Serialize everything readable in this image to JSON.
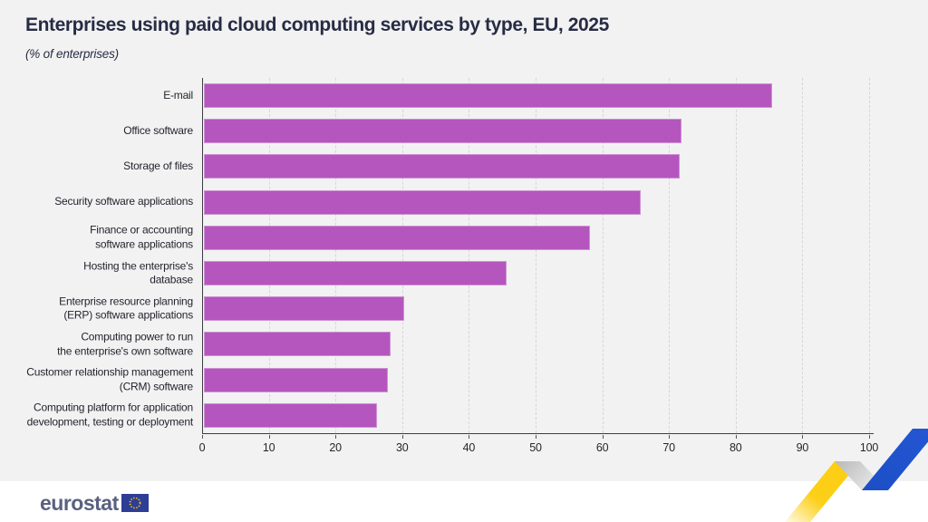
{
  "header": {
    "title": "Enterprises using paid cloud computing services by type, EU, 2025",
    "subtitle": "(% of enterprises)"
  },
  "chart_data": {
    "type": "bar",
    "orientation": "horizontal",
    "title": "Enterprises using paid cloud computing services by type, EU, 2025",
    "subtitle": "(% of enterprises)",
    "categories": [
      "E-mail",
      "Office software",
      "Storage of files",
      "Security software applications",
      "Finance or accounting\nsoftware applications",
      "Hosting the enterprise's\ndatabase",
      "Enterprise resource planning\n(ERP) software applications",
      "Computing power to run\nthe enterprise's own software",
      "Customer relationship management\n(CRM) software",
      "Computing platform for application\ndevelopment, testing or deployment"
    ],
    "values": [
      85.5,
      71.9,
      71.6,
      65.7,
      58.2,
      45.7,
      30.3,
      28.2,
      27.9,
      26.2
    ],
    "xlabel": "",
    "ylabel": "",
    "xlim": [
      0,
      100
    ],
    "xticks": [
      0,
      10,
      20,
      30,
      40,
      50,
      60,
      70,
      80,
      90,
      100
    ],
    "grid": "vertical-dashed",
    "legend": "none",
    "bar_color": "#b456bd"
  },
  "footer": {
    "brand": "eurostat",
    "flag_icon": "eu-flag-icon",
    "ribbon_icon": "zigzag-ribbon-icon"
  },
  "colors": {
    "background_panel": "#f2f2f2",
    "bar": "#b456bd",
    "title_text": "#272c45",
    "axis": "#3d3d42",
    "gridline": "#d6d6d6",
    "brand_text": "#5a6080",
    "flag_blue": "#2e3d95",
    "star_yellow": "#ffcc00",
    "ribbon_blue": "#1e50c8",
    "ribbon_yellow": "#fccd12"
  }
}
